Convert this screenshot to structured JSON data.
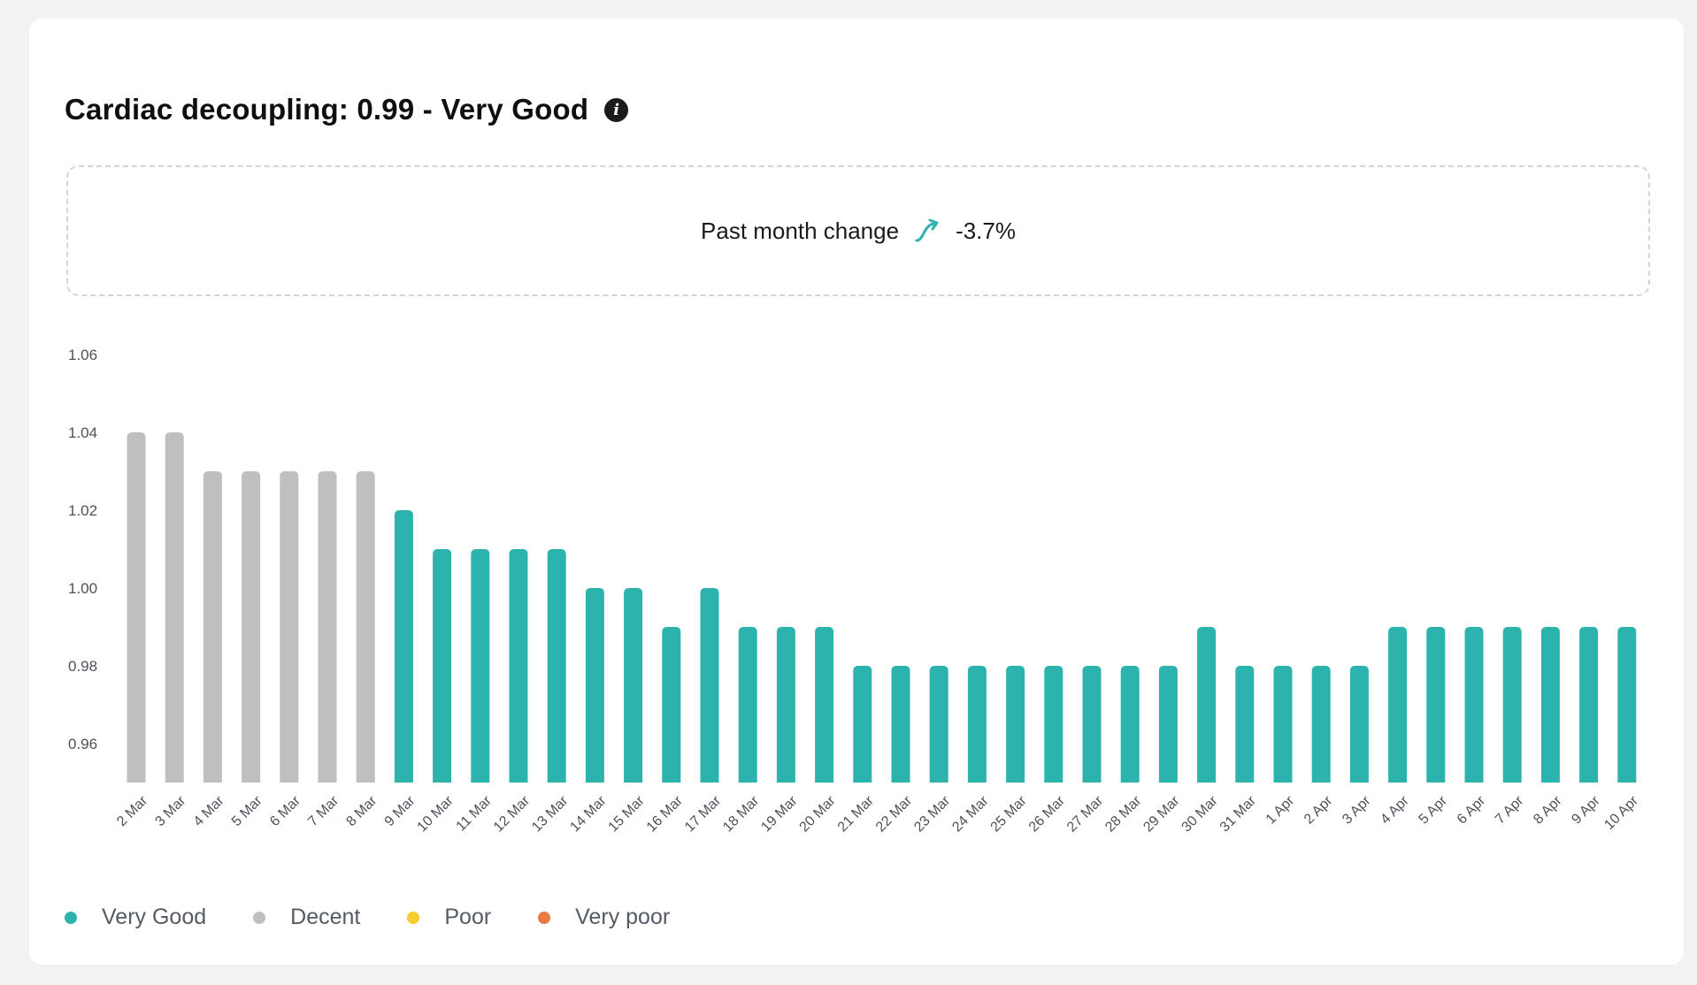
{
  "header": {
    "title": "Cardiac decoupling: 0.99 - Very Good",
    "info_icon": "info-icon"
  },
  "summary": {
    "label": "Past month change",
    "value": "-3.7%",
    "trend_icon": "trend-arrow-icon",
    "trend_color": "#2cb3ad"
  },
  "colors": {
    "very_good": "#2cb3ad",
    "decent": "#bfbfbf",
    "poor": "#f7cc2f",
    "very_poor": "#ea7a45"
  },
  "legend": [
    {
      "label": "Very Good",
      "color": "#2cb3ad"
    },
    {
      "label": "Decent",
      "color": "#bfbfbf"
    },
    {
      "label": "Poor",
      "color": "#f7cc2f"
    },
    {
      "label": "Very poor",
      "color": "#ea7a45"
    }
  ],
  "chart_data": {
    "type": "bar",
    "categories": [
      "2 Mar",
      "3 Mar",
      "4 Mar",
      "5 Mar",
      "6 Mar",
      "7 Mar",
      "8 Mar",
      "9 Mar",
      "10 Mar",
      "11 Mar",
      "12 Mar",
      "13 Mar",
      "14 Mar",
      "15 Mar",
      "16 Mar",
      "17 Mar",
      "18 Mar",
      "19 Mar",
      "20 Mar",
      "21 Mar",
      "22 Mar",
      "23 Mar",
      "24 Mar",
      "25 Mar",
      "26 Mar",
      "27 Mar",
      "28 Mar",
      "29 Mar",
      "30 Mar",
      "31 Mar",
      "1 Apr",
      "2 Apr",
      "3 Apr",
      "4 Apr",
      "5 Apr",
      "6 Apr",
      "7 Apr",
      "8 Apr",
      "9 Apr",
      "10 Apr"
    ],
    "values": [
      1.04,
      1.04,
      1.03,
      1.03,
      1.03,
      1.03,
      1.03,
      1.02,
      1.01,
      1.01,
      1.01,
      1.01,
      1.0,
      1.0,
      0.99,
      1.0,
      0.99,
      0.99,
      0.99,
      0.98,
      0.98,
      0.98,
      0.98,
      0.98,
      0.98,
      0.98,
      0.98,
      0.98,
      0.99,
      0.98,
      0.98,
      0.98,
      0.98,
      0.99,
      0.99,
      0.99,
      0.99,
      0.99,
      0.99,
      0.99
    ],
    "ratings": [
      "Decent",
      "Decent",
      "Decent",
      "Decent",
      "Decent",
      "Decent",
      "Decent",
      "Very Good",
      "Very Good",
      "Very Good",
      "Very Good",
      "Very Good",
      "Very Good",
      "Very Good",
      "Very Good",
      "Very Good",
      "Very Good",
      "Very Good",
      "Very Good",
      "Very Good",
      "Very Good",
      "Very Good",
      "Very Good",
      "Very Good",
      "Very Good",
      "Very Good",
      "Very Good",
      "Very Good",
      "Very Good",
      "Very Good",
      "Very Good",
      "Very Good",
      "Very Good",
      "Very Good",
      "Very Good",
      "Very Good",
      "Very Good",
      "Very Good",
      "Very Good",
      "Very Good"
    ],
    "yticks": [
      "1.06",
      "1.04",
      "1.02",
      "1.00",
      "0.98",
      "0.96"
    ],
    "ylim": [
      0.95,
      1.06
    ],
    "xlabel": "",
    "ylabel": "",
    "grid": false,
    "legend_position": "bottom-left"
  }
}
